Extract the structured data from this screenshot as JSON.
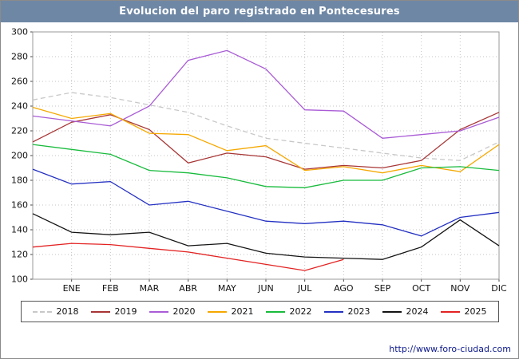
{
  "header": {
    "title": "Evolucion del paro registrado en Pontecesures",
    "title_bar_color": "#6e87a5"
  },
  "footer": {
    "url_label": "http://www.foro-ciudad.com"
  },
  "chart_data": {
    "type": "line",
    "title": "Evolucion del paro registrado en Pontecesures",
    "x_axis": {
      "month_labels": [
        "ENE",
        "FEB",
        "MAR",
        "ABR",
        "MAY",
        "JUN",
        "JUL",
        "AGO",
        "SEP",
        "OCT",
        "NOV",
        "DIC"
      ],
      "layout_note": "13 evenly spaced x positions per series; point 0 lies on the left axis, month ticks align with points 1-12"
    },
    "y_axis": {
      "min": 100,
      "max": 300,
      "tick_step": 20,
      "ticks": [
        100,
        120,
        140,
        160,
        180,
        200,
        220,
        240,
        260,
        280,
        300
      ]
    },
    "grid": true,
    "legend_position": "bottom",
    "series": [
      {
        "name": "2018",
        "color": "#c8c8c8",
        "dashed": true,
        "values": [
          245,
          251,
          247,
          241,
          235,
          224,
          214,
          210,
          206,
          202,
          198,
          196,
          211
        ]
      },
      {
        "name": "2019",
        "color": "#a83434",
        "dashed": false,
        "values": [
          211,
          227,
          233,
          221,
          194,
          202,
          199,
          189,
          192,
          190,
          196,
          221,
          235
        ]
      },
      {
        "name": "2020",
        "color": "#a95cd6",
        "dashed": false,
        "values": [
          232,
          228,
          224,
          240,
          277,
          285,
          270,
          237,
          236,
          214,
          217,
          220,
          231
        ]
      },
      {
        "name": "2021",
        "color": "#f5a800",
        "dashed": false,
        "values": [
          239,
          230,
          234,
          218,
          217,
          204,
          208,
          188,
          191,
          186,
          192,
          187,
          209
        ]
      },
      {
        "name": "2022",
        "color": "#18bb3c",
        "dashed": false,
        "values": [
          209,
          205,
          201,
          188,
          186,
          182,
          175,
          174,
          180,
          180,
          190,
          191,
          188
        ]
      },
      {
        "name": "2023",
        "color": "#2330c2",
        "dashed": false,
        "values": [
          189,
          177,
          179,
          160,
          163,
          155,
          147,
          145,
          147,
          144,
          135,
          150,
          154
        ]
      },
      {
        "name": "2024",
        "color": "#141414",
        "dashed": false,
        "values": [
          153,
          138,
          136,
          138,
          127,
          129,
          121,
          118,
          117,
          116,
          126,
          148,
          127
        ]
      },
      {
        "name": "2025",
        "color": "#e32222",
        "dashed": false,
        "values": [
          126,
          129,
          128,
          125,
          122,
          117,
          112,
          107,
          116,
          null,
          null,
          null,
          null
        ]
      }
    ]
  }
}
